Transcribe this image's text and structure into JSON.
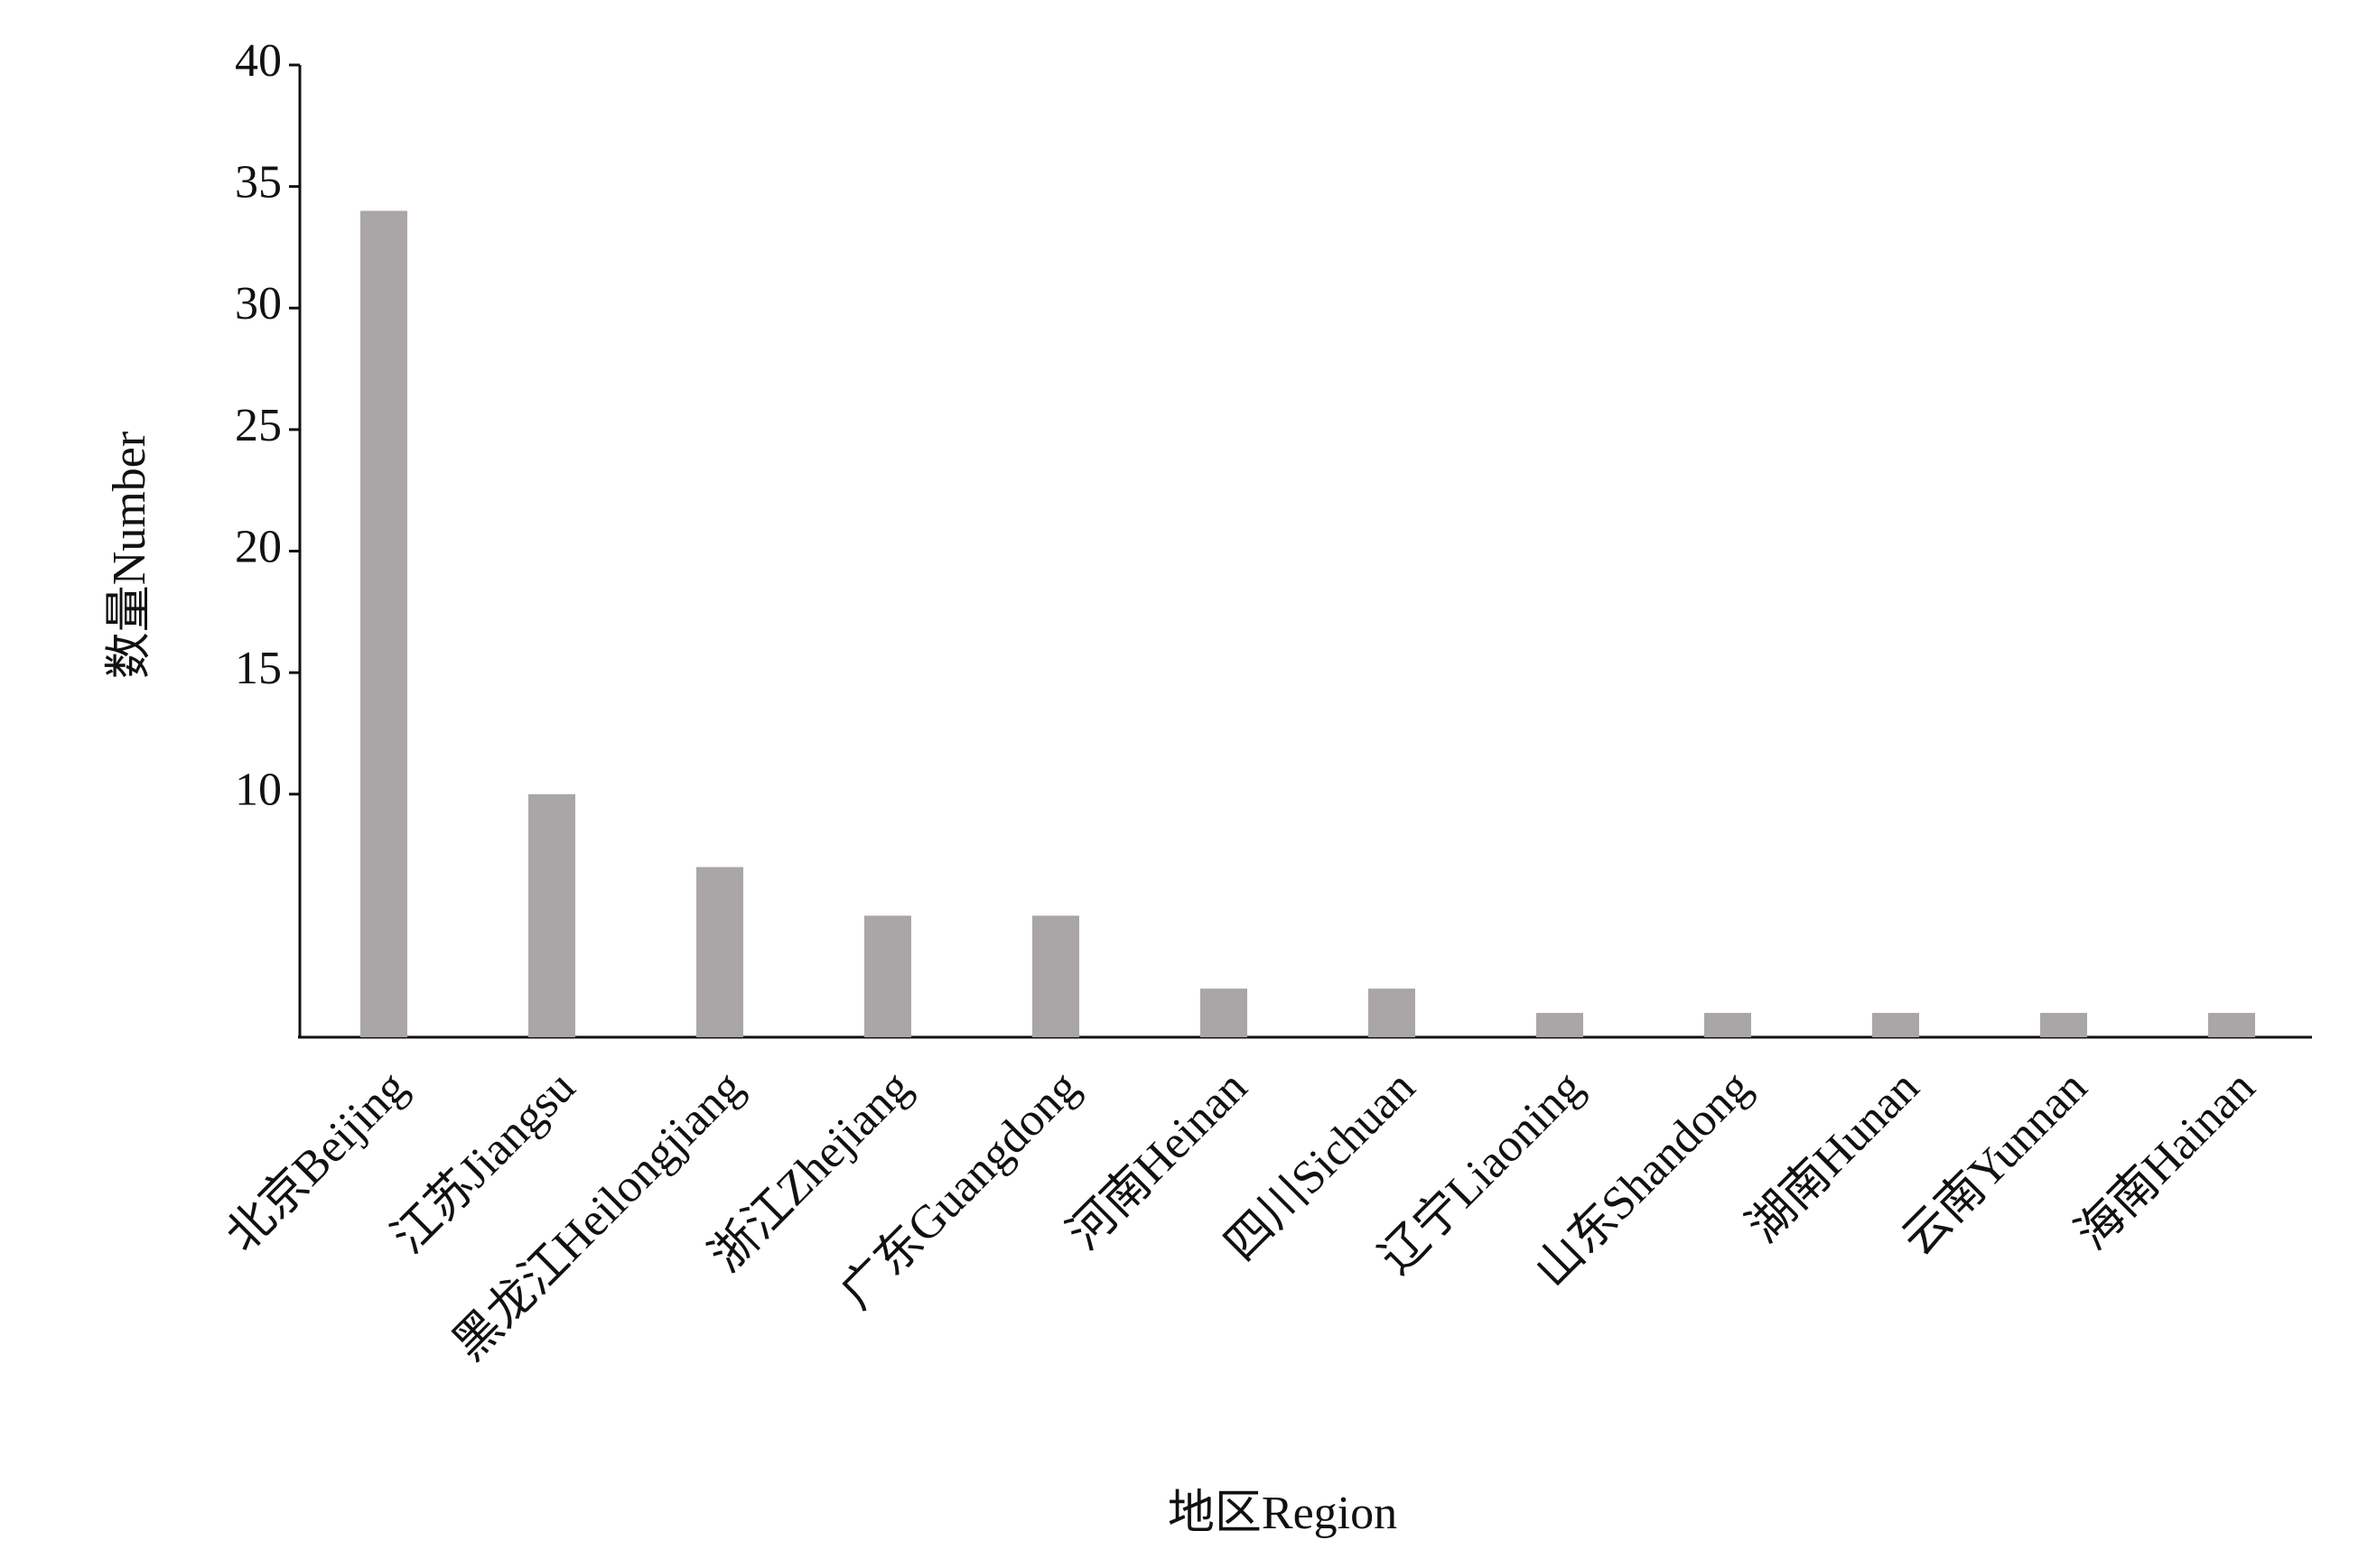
{
  "chart_data": {
    "type": "bar",
    "categories": [
      "北京Beijing",
      "江苏Jiangsu",
      "黑龙江Heilongjiang",
      "浙江Zhejiang",
      "广东Guangdong",
      "河南Heinan",
      "四川Sichuan",
      "辽宁Liaoning",
      "山东Shandong",
      "湖南Hunan",
      "云南Yunnan",
      "海南Hainan"
    ],
    "values": [
      34,
      10,
      7,
      5,
      5,
      2,
      2,
      1,
      1,
      1,
      1,
      1
    ],
    "color": "#aaa6a8",
    "ylim": [
      0,
      40
    ],
    "yticks": [
      10,
      15,
      20,
      25,
      30,
      35,
      40
    ],
    "xlabel": "地区Region",
    "ylabel": "数量Number"
  }
}
